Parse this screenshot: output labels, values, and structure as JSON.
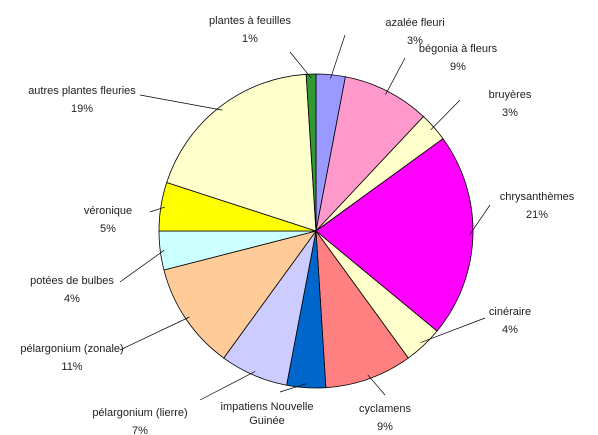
{
  "chart_data": {
    "type": "pie",
    "categories": [
      "azalée fleuri",
      "bégonia à fleurs",
      "bruyères",
      "chrysanthèmes",
      "cinéraire",
      "cyclamens",
      "impatiens Nouvelle Guinée",
      "pélargonium (lierre)",
      "pélargonium (zonale)",
      "potées de bulbes",
      "véronique",
      "autres plantes fleuries",
      "plantes à feuilles"
    ],
    "values": [
      3,
      9,
      3,
      21,
      4,
      9,
      4,
      7,
      11,
      4,
      5,
      19,
      1
    ],
    "value_labels": [
      "3%",
      "9%",
      "3%",
      "21%",
      "4%",
      "9%",
      null,
      "7%",
      "11%",
      "4%",
      "5%",
      "19%",
      "1%"
    ],
    "colors": [
      "#9999ff",
      "#ff99cc",
      "#ffffcc",
      "#ff00ff",
      "#ffffcc",
      "#ff8080",
      "#0066cc",
      "#ccccff",
      "#ffcc99",
      "#ccffff",
      "#ffff00",
      "#ffffcc",
      "#339933"
    ]
  }
}
